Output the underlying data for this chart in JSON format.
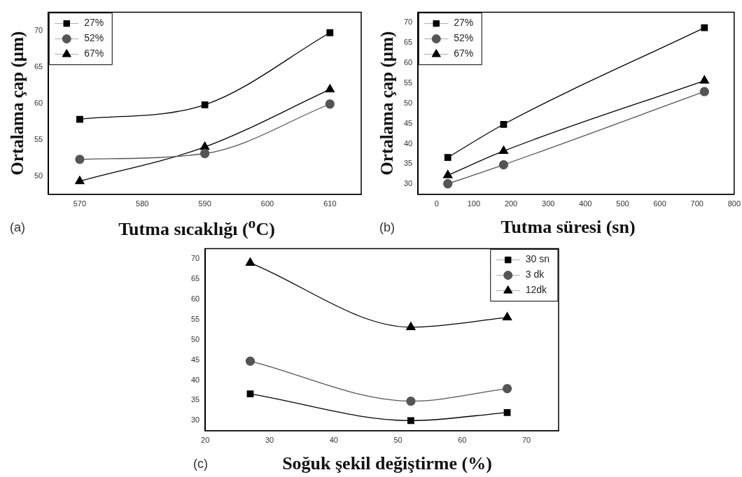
{
  "chart_data": [
    {
      "type": "line",
      "xlabel": "Tutma sıcaklığı ($^{o}$C)",
      "ylabel": "Ortalama çap (µm)",
      "annotations": [
        "(a)"
      ],
      "x": [
        570,
        590,
        610
      ],
      "xlim": [
        565,
        615
      ],
      "xticks": [
        570,
        580,
        590,
        600,
        610
      ],
      "ylim": [
        47.5,
        72.5
      ],
      "yticks": [
        50,
        55,
        60,
        65,
        70
      ],
      "legend": "top left",
      "grid": false,
      "series": [
        {
          "name": "27%",
          "color": "#000000",
          "marker": "square",
          "values": [
            57.8,
            59.8,
            69.7
          ]
        },
        {
          "name": "52%",
          "color": "#555555",
          "marker": "circle",
          "values": [
            52.3,
            53.1,
            59.9
          ]
        },
        {
          "name": "67%",
          "color": "#000000",
          "marker": "triangle",
          "values": [
            49.3,
            54,
            61.9
          ]
        }
      ]
    },
    {
      "type": "line",
      "xlabel": "Tutma süresi (sn)",
      "ylabel": "Ortalama çap (µm)",
      "annotations": [
        "(b)"
      ],
      "x": [
        30,
        180,
        720
      ],
      "xlim": [
        -50,
        800
      ],
      "xticks": [
        0,
        100,
        200,
        300,
        400,
        500,
        600,
        700,
        800
      ],
      "ylim": [
        27.5,
        72.5
      ],
      "yticks": [
        30,
        35,
        40,
        45,
        50,
        55,
        60,
        65,
        70
      ],
      "legend": "top left",
      "grid": false,
      "series": [
        {
          "name": "27%",
          "color": "#000000",
          "marker": "square",
          "values": [
            36.6,
            44.8,
            68.7
          ]
        },
        {
          "name": "52%",
          "color": "#555555",
          "marker": "circle",
          "values": [
            30.1,
            34.8,
            52.9
          ]
        },
        {
          "name": "67%",
          "color": "#000000",
          "marker": "triangle",
          "values": [
            32.2,
            38.2,
            55.6
          ]
        }
      ]
    },
    {
      "type": "line",
      "xlabel": "Soğuk şekil değiştirme (%)",
      "annotations": [
        "(c)"
      ],
      "x": [
        27,
        52,
        67
      ],
      "xlim": [
        20,
        75
      ],
      "xticks": [
        20,
        30,
        40,
        50,
        60,
        70
      ],
      "ylim": [
        27.5,
        72.5
      ],
      "yticks": [
        30,
        35,
        40,
        45,
        50,
        55,
        60,
        65,
        70
      ],
      "legend": "top right",
      "grid": false,
      "series": [
        {
          "name": "30 sn",
          "color": "#000000",
          "marker": "square",
          "values": [
            36.6,
            30,
            32
          ]
        },
        {
          "name": "3 dk",
          "color": "#555555",
          "marker": "circle",
          "values": [
            44.7,
            34.8,
            37.9
          ]
        },
        {
          "name": "12dk",
          "color": "#000000",
          "marker": "triangle",
          "values": [
            69,
            53.1,
            55.5
          ]
        }
      ]
    }
  ]
}
